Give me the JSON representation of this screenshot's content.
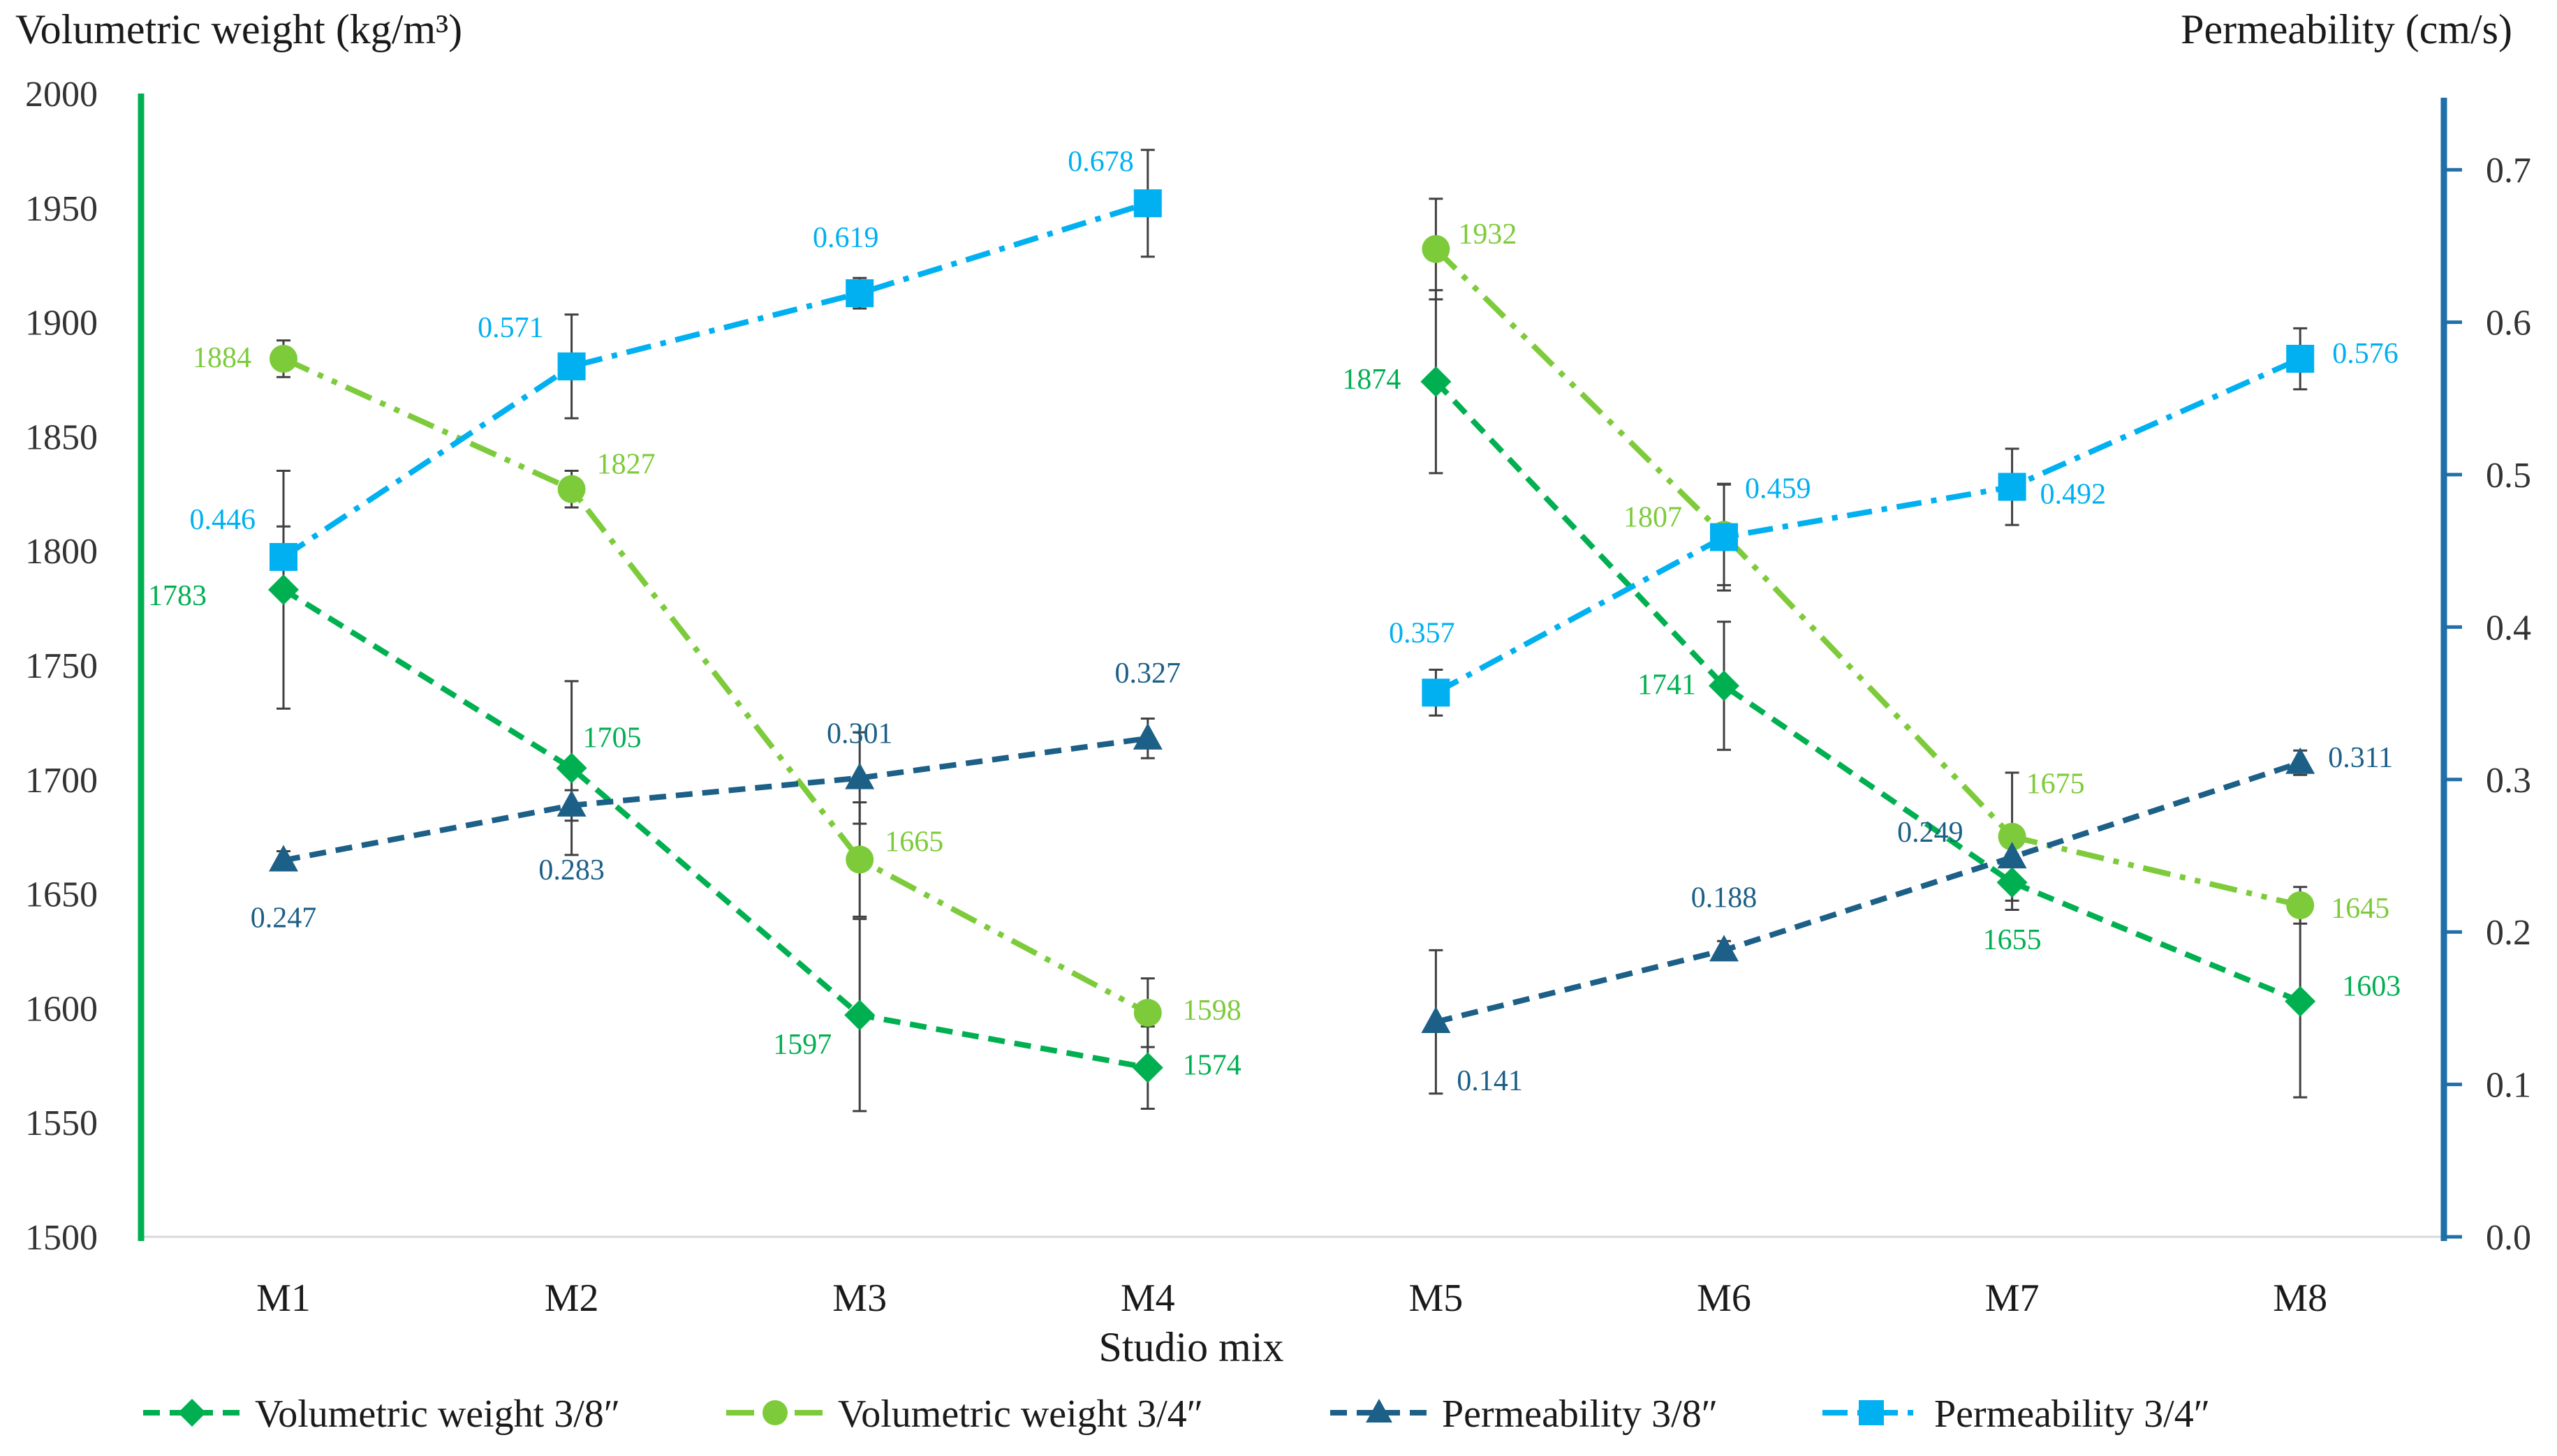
{
  "chart_data": {
    "type": "line",
    "xlabel": "Studio mix",
    "ylabel_left": "Volumetric weight (kg/m³)",
    "ylabel_right": "Permeability (cm/s)",
    "categories": [
      "M1",
      "M2",
      "M3",
      "M4",
      "M5",
      "M6",
      "M7",
      "M8"
    ],
    "ylim_left": [
      1500,
      2000
    ],
    "yticks_left": [
      1500,
      1550,
      1600,
      1650,
      1700,
      1750,
      1800,
      1850,
      1900,
      1950,
      2000
    ],
    "ylim_right": [
      0.0,
      0.75
    ],
    "yticks_right": [
      "0.0",
      "0.1",
      "0.2",
      "0.3",
      "0.4",
      "0.5",
      "0.6",
      "0.7"
    ],
    "series": [
      {
        "name": "Volumetric weight  3/8″",
        "axis": "left",
        "color": "#00B050",
        "marker": "diamond",
        "dash": "dashed",
        "segments": [
          [
            0,
            1,
            2,
            3
          ],
          [
            4,
            5,
            6,
            7
          ]
        ],
        "values": [
          1783,
          1705,
          1597,
          1574,
          1874,
          1741,
          1655,
          1603
        ],
        "labels": [
          "1783",
          "1705",
          "1597",
          "1574",
          "1874",
          "1741",
          "1655",
          "1603"
        ],
        "errors": [
          52,
          38,
          42,
          18,
          40,
          28,
          12,
          42
        ]
      },
      {
        "name": "Volumetric weight  3/4″",
        "axis": "left",
        "color": "#7DCB3A",
        "marker": "circle",
        "dash": "dashdotdot",
        "segments": [
          [
            0,
            1,
            2,
            3
          ],
          [
            4,
            5,
            6,
            7
          ]
        ],
        "values": [
          1884,
          1827,
          1665,
          1598,
          1932,
          1807,
          1675,
          1645
        ],
        "labels": [
          "1884",
          "1827",
          "1665",
          "1598",
          "1932",
          "1807",
          "1675",
          "1645"
        ],
        "errors": [
          8,
          8,
          25,
          15,
          22,
          22,
          28,
          8
        ]
      },
      {
        "name": "Permeability 3/8″",
        "axis": "right",
        "color": "#1C5F87",
        "marker": "triangle",
        "dash": "dashed",
        "segments": [
          [
            0,
            1,
            2,
            3
          ],
          [
            4,
            5,
            6,
            7
          ]
        ],
        "values": [
          0.247,
          0.283,
          0.301,
          0.327,
          0.141,
          0.188,
          0.249,
          0.311
        ],
        "labels": [
          "0.247",
          "0.283",
          "0.301",
          "0.327",
          "0.141",
          "0.188",
          "0.249",
          "0.311"
        ],
        "errors": [
          0.006,
          0.01,
          0.03,
          0.013,
          0.047,
          0.006,
          0.012,
          0.008
        ]
      },
      {
        "name": "Permeability 3/4″",
        "axis": "right",
        "color": "#00B0F0",
        "marker": "square",
        "dash": "dashdot",
        "segments": [
          [
            0,
            1,
            2,
            3
          ],
          [
            4,
            5,
            6,
            7
          ]
        ],
        "values": [
          0.446,
          0.571,
          0.619,
          0.678,
          0.357,
          0.459,
          0.492,
          0.576
        ],
        "labels": [
          "0.446",
          "0.571",
          "0.619",
          "0.678",
          "0.357",
          "0.459",
          "0.492",
          "0.576"
        ],
        "errors": [
          0.02,
          0.034,
          0.01,
          0.035,
          0.015,
          0.035,
          0.025,
          0.02
        ]
      }
    ]
  }
}
